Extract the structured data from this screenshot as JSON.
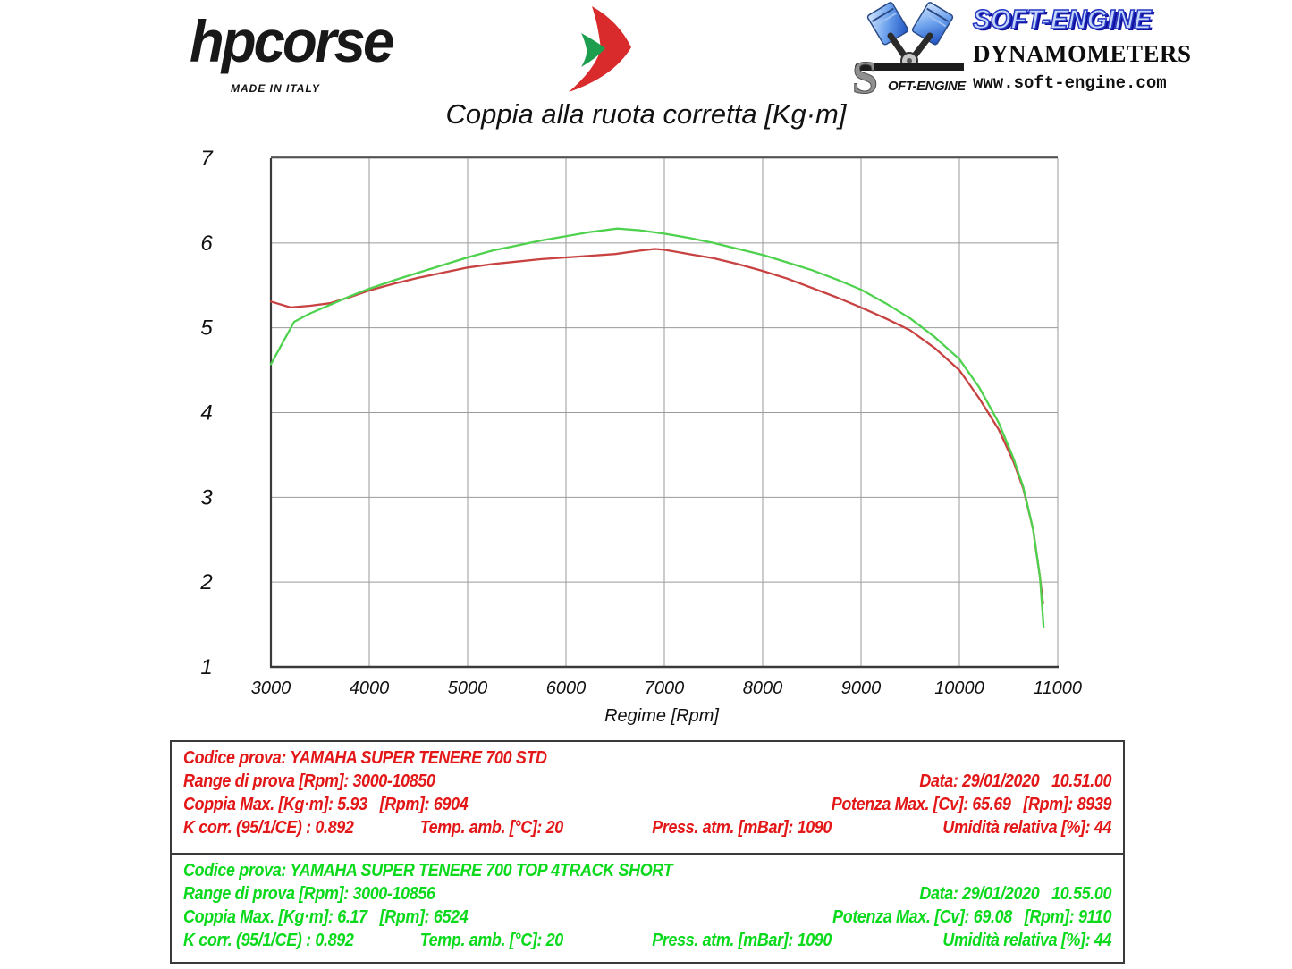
{
  "header": {
    "hpcorse": {
      "brand": "hpcorse",
      "tagline": "MADE IN ITALY"
    },
    "softengine": {
      "brand": "SOFT-ENGINE",
      "subtitle": "DYNAMOMETERS",
      "url": "www.soft-engine.com",
      "badge_s": "S",
      "badge": "OFT-ENGINE"
    }
  },
  "chart_data": {
    "type": "line",
    "title": "Coppia alla ruota corretta [Kg·m]",
    "xlabel": "Regime [Rpm]",
    "ylabel": "",
    "xlim": [
      3000,
      11000
    ],
    "ylim": [
      1,
      7
    ],
    "x_ticks": [
      3000,
      4000,
      5000,
      6000,
      7000,
      8000,
      9000,
      10000,
      11000
    ],
    "y_ticks": [
      1,
      2,
      3,
      4,
      5,
      6,
      7
    ],
    "grid": true,
    "legend_position": "none",
    "grid_color": "#9a9a9a",
    "axis_color": "#3a3a3a",
    "series": [
      {
        "name": "YAMAHA SUPER TENERE 700 STD",
        "color": "#c84242",
        "x": [
          3000,
          3200,
          3400,
          3600,
          3800,
          4000,
          4250,
          4500,
          4750,
          5000,
          5250,
          5500,
          5750,
          6000,
          6250,
          6500,
          6750,
          6904,
          7000,
          7250,
          7500,
          7750,
          8000,
          8250,
          8500,
          8750,
          9000,
          9250,
          9500,
          9750,
          10000,
          10200,
          10400,
          10550,
          10650,
          10750,
          10820,
          10850
        ],
        "values": [
          5.31,
          5.24,
          5.26,
          5.29,
          5.36,
          5.44,
          5.52,
          5.59,
          5.65,
          5.71,
          5.75,
          5.78,
          5.81,
          5.83,
          5.85,
          5.87,
          5.91,
          5.93,
          5.92,
          5.87,
          5.82,
          5.75,
          5.67,
          5.58,
          5.47,
          5.36,
          5.24,
          5.11,
          4.97,
          4.76,
          4.5,
          4.17,
          3.8,
          3.42,
          3.1,
          2.62,
          2.05,
          1.75
        ]
      },
      {
        "name": "YAMAHA SUPER TENERE 700 TOP 4TRACK SHORT",
        "color": "#4ed24e",
        "x": [
          3000,
          3236,
          3400,
          3600,
          3800,
          4000,
          4250,
          4500,
          4750,
          5000,
          5250,
          5500,
          5750,
          6000,
          6250,
          6524,
          6750,
          7000,
          7250,
          7500,
          7750,
          8000,
          8250,
          8500,
          8750,
          9000,
          9250,
          9500,
          9750,
          10000,
          10200,
          10400,
          10550,
          10650,
          10750,
          10820,
          10856
        ],
        "values": [
          4.57,
          5.07,
          5.17,
          5.27,
          5.37,
          5.46,
          5.56,
          5.65,
          5.74,
          5.83,
          5.91,
          5.97,
          6.03,
          6.08,
          6.13,
          6.17,
          6.15,
          6.11,
          6.06,
          6.0,
          5.93,
          5.86,
          5.77,
          5.68,
          5.57,
          5.45,
          5.29,
          5.11,
          4.89,
          4.63,
          4.3,
          3.88,
          3.46,
          3.12,
          2.62,
          2.05,
          1.47
        ]
      }
    ]
  },
  "info_blocks": [
    {
      "codice": "Codice prova: YAMAHA SUPER TENERE 700 STD",
      "range": "Range di prova [Rpm]: 3000-10850",
      "data": "Data: 29/01/2020   10.51.00",
      "coppia": "Coppia Max. [Kg·m]: 5.93   [Rpm]: 6904",
      "potenza": "Potenza Max. [Cv]: 65.69   [Rpm]: 8939",
      "kcorr": "K corr. (95/1/CE) : 0.892",
      "temp": "Temp. amb. [°C]: 20",
      "press": "Press. atm. [mBar]: 1090",
      "umidita": "Umidità relativa [%]: 44",
      "color": "#e31717"
    },
    {
      "codice": "Codice prova: YAMAHA SUPER TENERE 700 TOP 4TRACK SHORT",
      "range": "Range di prova [Rpm]: 3000-10856",
      "data": "Data: 29/01/2020   10.55.00",
      "coppia": "Coppia Max. [Kg·m]: 6.17   [Rpm]: 6524",
      "potenza": "Potenza Max. [Cv]: 69.08   [Rpm]: 9110",
      "kcorr": "K corr. (95/1/CE) : 0.892",
      "temp": "Temp. amb. [°C]: 20",
      "press": "Press. atm. [mBar]: 1090",
      "umidita": "Umidità relativa [%]: 44",
      "color": "#0bd91c"
    }
  ]
}
